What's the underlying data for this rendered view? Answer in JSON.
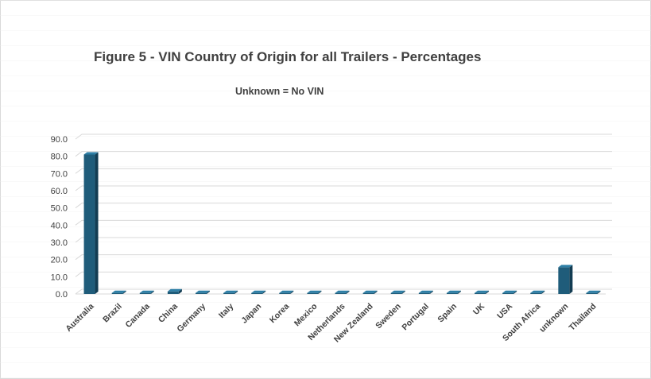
{
  "chart_data": {
    "type": "bar",
    "title": "Figure 5 - VIN Country of Origin for all Trailers - Percentages",
    "annotation": "Unknown  =  No VIN",
    "xlabel": "",
    "ylabel": "",
    "ylim": [
      0,
      90
    ],
    "yticks": [
      "90.0",
      "80.0",
      "70.0",
      "60.0",
      "50.0",
      "40.0",
      "30.0",
      "20.0",
      "10.0",
      "0.0"
    ],
    "grid": true,
    "categories": [
      "Australia",
      "Brazil",
      "Canada",
      "China",
      "Germany",
      "Italy",
      "Japan",
      "Korea",
      "Mexico",
      "Netherlands",
      "New Zealand",
      "Sweden",
      "Portugal",
      "Spain",
      "UK",
      "USA",
      "South Africa",
      "unknown",
      "Thailand"
    ],
    "values": [
      81.0,
      0.1,
      0.1,
      1.5,
      0.4,
      0.2,
      0.2,
      0.2,
      0.1,
      0.2,
      0.6,
      0.6,
      0.1,
      0.1,
      0.1,
      0.4,
      0.1,
      15.5,
      0.1
    ],
    "colors": {
      "bar_front": "#1f5c7a",
      "bar_side": "#123c52",
      "bar_top": "#2e7fa6",
      "grid": "#d9d9d9",
      "text": "#404040"
    }
  }
}
